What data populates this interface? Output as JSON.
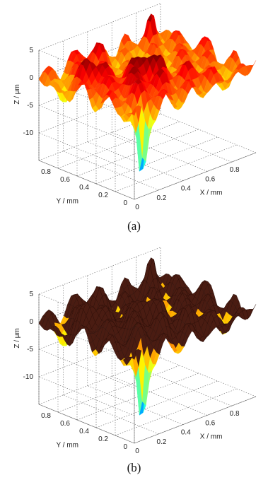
{
  "figure": {
    "captions": [
      "(a)",
      "(b)"
    ]
  },
  "chart_data": [
    {
      "type": "surface",
      "panel": "(a)",
      "xlabel": "X / mm",
      "ylabel": "Y / mm",
      "zlabel": "Z / μm",
      "xlim": [
        0,
        1
      ],
      "ylim": [
        0,
        1
      ],
      "zlim": [
        -15,
        5
      ],
      "x_ticks": [
        "0",
        "0.2",
        "0.4",
        "0.6",
        "0.8"
      ],
      "y_ticks": [
        "0",
        "0.2",
        "0.4",
        "0.6",
        "0.8"
      ],
      "z_ticks": [
        "5",
        "0",
        "-5",
        "-10"
      ],
      "grid": true,
      "colormap": "jet",
      "surface_mean_z": 0,
      "deepest_pit": {
        "x": 0.1,
        "y": 0.05,
        "z": -13
      },
      "peak": {
        "x": 0.85,
        "y": 0.9,
        "z": 5
      }
    },
    {
      "type": "surface",
      "panel": "(b)",
      "xlabel": "X / mm",
      "ylabel": "Y / mm",
      "zlabel": "Z / μm",
      "xlim": [
        0,
        1
      ],
      "ylim": [
        0,
        1
      ],
      "zlim": [
        -15,
        5
      ],
      "x_ticks": [
        "0",
        "0.2",
        "0.4",
        "0.6",
        "0.8"
      ],
      "y_ticks": [
        "0",
        "0.2",
        "0.4",
        "0.6",
        "0.8"
      ],
      "z_ticks": [
        "5",
        "0",
        "-5",
        "-10"
      ],
      "grid": true,
      "colormap": "jet",
      "overlay": {
        "type": "fitted envelope surface",
        "color": "#4a1c12"
      },
      "deepest_pit": {
        "x": 0.1,
        "y": 0.05,
        "z": -13
      },
      "peak": {
        "x": 0.85,
        "y": 0.9,
        "z": 5
      }
    }
  ]
}
